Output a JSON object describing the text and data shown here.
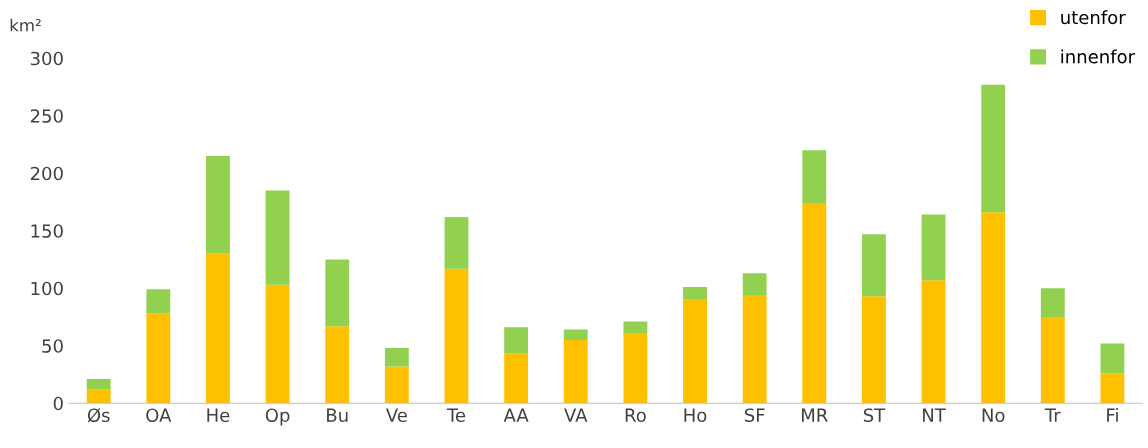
{
  "chart_data": {
    "type": "bar",
    "stacked": true,
    "ylabel": "km²",
    "categories": [
      "Øs",
      "OA",
      "He",
      "Op",
      "Bu",
      "Ve",
      "Te",
      "AA",
      "VA",
      "Ro",
      "Ho",
      "SF",
      "MR",
      "ST",
      "NT",
      "No",
      "Tr",
      "Fi"
    ],
    "series": [
      {
        "name": "utenfor",
        "color": "#ffc000",
        "values": [
          12,
          78,
          130,
          103,
          67,
          32,
          117,
          43,
          55,
          61,
          90,
          94,
          174,
          93,
          107,
          166,
          75,
          26
        ]
      },
      {
        "name": "innenfor",
        "color": "#92d050",
        "values": [
          9,
          21,
          85,
          82,
          58,
          16,
          45,
          23,
          9,
          10,
          11,
          19,
          46,
          54,
          57,
          111,
          25,
          26
        ]
      }
    ],
    "ylim": [
      0,
      300
    ],
    "yticks": [
      0,
      50,
      100,
      150,
      200,
      250,
      300
    ],
    "grid": false,
    "legend": "top right"
  }
}
